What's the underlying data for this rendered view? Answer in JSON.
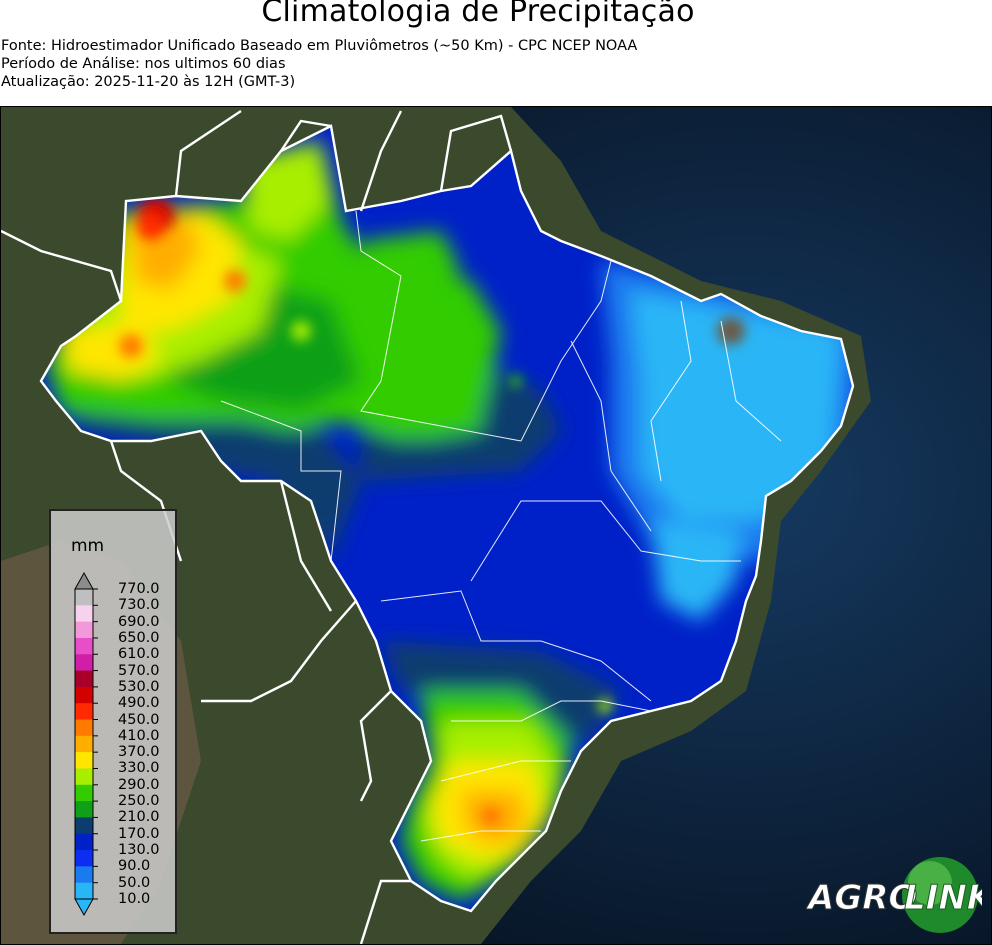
{
  "header": {
    "title": "Climatologia de Precipitação",
    "source": "Fonte: Hidroestimador Unificado Baseado em Pluviômetros (~50 Km) - CPC NCEP NOAA",
    "period": "Período de Análise: nos ultimos 60 dias",
    "updated": "Atualização: 2025-11-20 às 12H (GMT-3)"
  },
  "legend": {
    "unit": "mm",
    "ticks": [
      "770.0",
      "730.0",
      "690.0",
      "650.0",
      "610.0",
      "570.0",
      "530.0",
      "490.0",
      "450.0",
      "410.0",
      "370.0",
      "330.0",
      "290.0",
      "250.0",
      "210.0",
      "170.0",
      "130.0",
      "90.0",
      "50.0",
      "10.0"
    ],
    "colors": {
      "770.0": "#8c8c8c",
      "730.0": "#bfbfbf",
      "690.0": "#f6d2ee",
      "650.0": "#f29ad9",
      "610.0": "#e64fc8",
      "570.0": "#d01ea6",
      "530.0": "#a8002a",
      "490.0": "#d30000",
      "450.0": "#ff2a00",
      "410.0": "#ff7a00",
      "370.0": "#ffae00",
      "330.0": "#ffe600",
      "290.0": "#a8ee00",
      "250.0": "#33cc00",
      "210.0": "#0ea017",
      "170.0": "#0b3e6e",
      "130.0": "#0021c8",
      "90.0": "#0b2ef2",
      "50.0": "#1a7bf0",
      "10.0": "#29b6f6"
    }
  },
  "map": {
    "colors": {
      "ocean": "#0b1a2e",
      "land": "#3b4a2d",
      "border": "#ffffff"
    }
  },
  "logo": {
    "text_left": "AGRO",
    "text_right": "LINK",
    "colors": {
      "circle": "#1e8a2b",
      "circle_light": "#6ccf5a"
    }
  }
}
